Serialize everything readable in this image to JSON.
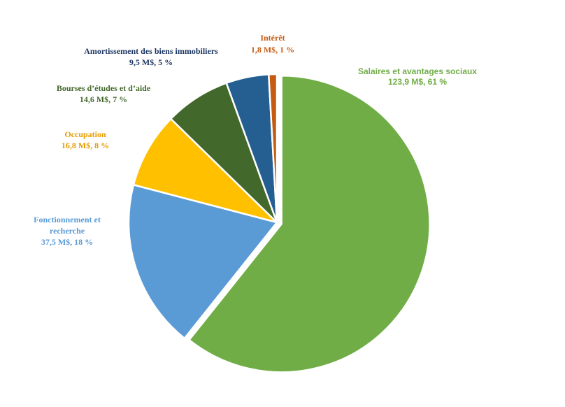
{
  "chart_data": {
    "type": "pie",
    "title": "",
    "slices": [
      {
        "label": "Salaires et avantages sociaux",
        "value_text": "123,9 M$, 61 %",
        "value": 123.9,
        "percent": 61,
        "color": "#70AD47"
      },
      {
        "label": "Fonctionnement et recherche",
        "value_text": "37,5 M$, 18 %",
        "value": 37.5,
        "percent": 18,
        "color": "#5B9BD5"
      },
      {
        "label": "Occupation",
        "value_text": "16,8 M$, 8 %",
        "value": 16.8,
        "percent": 8,
        "color": "#FFC000"
      },
      {
        "label": "Bourses d’études et d’aide",
        "value_text": "14,6 M$, 7 %",
        "value": 14.6,
        "percent": 7,
        "color": "#43682B"
      },
      {
        "label": "Amortissement des biens immobiliers",
        "value_text": "9,5 M$, 5 %",
        "value": 9.5,
        "percent": 5,
        "color": "#255E91"
      },
      {
        "label": "Intérêt",
        "value_text": "1,8 M$, 1 %",
        "value": 1.8,
        "percent": 1,
        "color": "#C55A11"
      }
    ],
    "label_colors": {
      "Salaires et avantages sociaux": "#70AD47",
      "Fonctionnement et recherche": "#5B9BD5",
      "Occupation": "#E69B00",
      "Bourses d’études et d’aide": "#43682B",
      "Amortissement des biens immobiliers": "#1F3864",
      "Intérêt": "#C55A11"
    }
  }
}
